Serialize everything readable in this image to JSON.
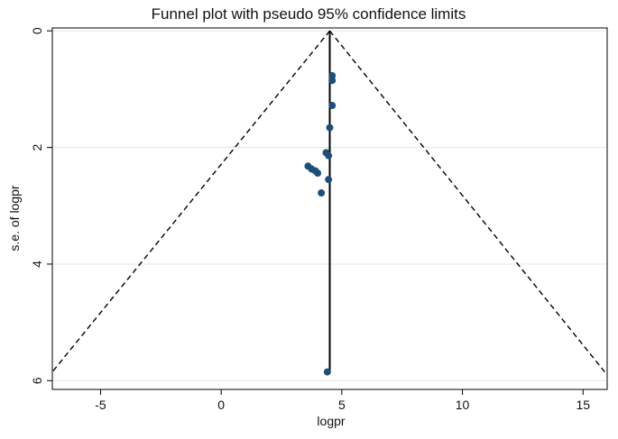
{
  "chart_data": {
    "type": "scatter",
    "title": "Funnel plot with pseudo 95% confidence limits",
    "xlabel": "logpr",
    "ylabel": "s.e. of logpr",
    "xlim": [
      -7,
      16
    ],
    "ylim": [
      6.15,
      -0.05
    ],
    "y_axis_reversed": true,
    "x_ticks": [
      -5,
      0,
      5,
      10,
      15
    ],
    "y_ticks": [
      0,
      2,
      4,
      6
    ],
    "grid": "horizontal",
    "pooled_estimate": 4.5,
    "confidence_lines": {
      "apex": [
        4.5,
        0
      ],
      "left_end": [
        -7.0,
        5.85
      ],
      "right_end": [
        15.9,
        5.85
      ]
    },
    "points": [
      {
        "x": 4.6,
        "y": 0.77
      },
      {
        "x": 4.6,
        "y": 0.85
      },
      {
        "x": 4.6,
        "y": 1.28
      },
      {
        "x": 4.5,
        "y": 1.66
      },
      {
        "x": 4.35,
        "y": 2.09
      },
      {
        "x": 4.45,
        "y": 2.14
      },
      {
        "x": 3.6,
        "y": 2.32
      },
      {
        "x": 3.75,
        "y": 2.37
      },
      {
        "x": 3.9,
        "y": 2.4
      },
      {
        "x": 4.0,
        "y": 2.44
      },
      {
        "x": 4.45,
        "y": 2.55
      },
      {
        "x": 4.15,
        "y": 2.78
      },
      {
        "x": 4.4,
        "y": 5.85
      }
    ],
    "colors": {
      "points": "#1f4e79",
      "grid": "#dde7e7",
      "axis": "#000000",
      "lines": "#000000",
      "plot_background": "#ffffff"
    }
  }
}
